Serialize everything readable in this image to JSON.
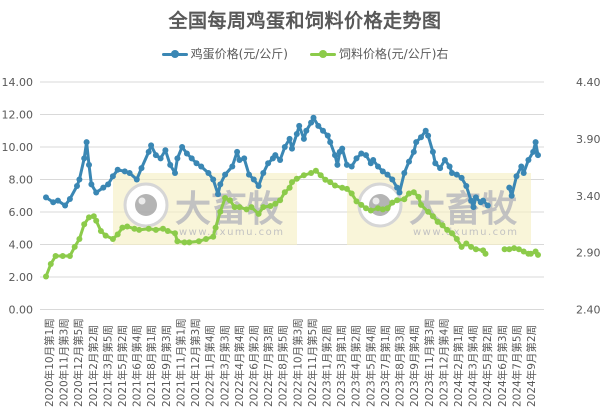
{
  "chart_data": {
    "type": "line",
    "title": "全国每周鸡蛋和饲料价格走势图",
    "legend": [
      {
        "name": "鸡蛋价格(元/公斤)",
        "color": "#3A87B4",
        "axis": "left"
      },
      {
        "name": "饲料价格(元/公斤)右",
        "color": "#8CCB4A",
        "axis": "right"
      }
    ],
    "legend_position": "top",
    "grid": true,
    "left_axis": {
      "min": 0,
      "max": 14,
      "step": 2,
      "ticks": [
        "0.00",
        "2.00",
        "4.00",
        "6.00",
        "8.00",
        "10.00",
        "12.00",
        "14.00"
      ]
    },
    "right_axis": {
      "min": 2.4,
      "max": 4.4,
      "step": 0.5,
      "ticks": [
        "2.40",
        "2.90",
        "3.40",
        "3.90",
        "4.40"
      ]
    },
    "total_weeks": 206,
    "categories": [
      "2020年10月第1周",
      "2020年11月第3周",
      "2020年12月第5周",
      "2021年2月第2周",
      "2021年3月第5周",
      "2021年5月第2周",
      "2021年6月第4周",
      "2021年8月第1周",
      "2021年9月第3周",
      "2021年11月第1周",
      "2021年12月第3周",
      "2022年1月第4周",
      "2022年3月第3周",
      "2022年4月第4周",
      "2022年6月第2周",
      "2022年7月第3周",
      "2022年8月第5周",
      "2022年10月第3周",
      "2022年11月第5周",
      "2023年1月第2周",
      "2023年3月第1周",
      "2023年4月第2周",
      "2023年5月第4周",
      "2023年7月第1周",
      "2023年8月第3周",
      "2023年9月第4周",
      "2023年11月第3周",
      "2023年12月第4周",
      "2024年2月第1周",
      "2024年3月第4周",
      "2024年5月第2周",
      "2024年6月第3周",
      "2024年7月第5周",
      "2024年9月第2周"
    ],
    "series": [
      {
        "name": "鸡蛋价格(元/公斤)",
        "axis": "left",
        "points": [
          [
            0,
            6.9
          ],
          [
            3,
            6.6
          ],
          [
            5,
            6.7
          ],
          [
            8,
            6.4
          ],
          [
            10,
            6.8
          ],
          [
            13,
            7.6
          ],
          [
            14,
            8.0
          ],
          [
            16,
            9.3
          ],
          [
            17,
            10.3
          ],
          [
            18,
            8.9
          ],
          [
            19,
            7.7
          ],
          [
            21,
            7.2
          ],
          [
            24,
            7.5
          ],
          [
            26,
            7.7
          ],
          [
            28,
            8.2
          ],
          [
            30,
            8.6
          ],
          [
            33,
            8.5
          ],
          [
            35,
            8.4
          ],
          [
            38,
            8.0
          ],
          [
            40,
            8.7
          ],
          [
            43,
            9.7
          ],
          [
            44,
            10.1
          ],
          [
            46,
            9.5
          ],
          [
            48,
            9.3
          ],
          [
            50,
            9.8
          ],
          [
            52,
            8.9
          ],
          [
            54,
            8.4
          ],
          [
            55,
            9.3
          ],
          [
            57,
            10.0
          ],
          [
            59,
            9.6
          ],
          [
            61,
            9.3
          ],
          [
            63,
            9.0
          ],
          [
            65,
            8.8
          ],
          [
            68,
            8.4
          ],
          [
            70,
            8.0
          ],
          [
            72,
            7.1
          ],
          [
            73,
            7.7
          ],
          [
            75,
            8.3
          ],
          [
            78,
            8.8
          ],
          [
            80,
            9.7
          ],
          [
            81,
            9.2
          ],
          [
            83,
            9.3
          ],
          [
            85,
            8.3
          ],
          [
            87,
            8.0
          ],
          [
            89,
            7.6
          ],
          [
            91,
            8.4
          ],
          [
            93,
            9.0
          ],
          [
            95,
            9.3
          ],
          [
            96,
            9.5
          ],
          [
            98,
            9.2
          ],
          [
            100,
            10.0
          ],
          [
            102,
            10.5
          ],
          [
            103,
            9.9
          ],
          [
            105,
            10.8
          ],
          [
            106,
            11.3
          ],
          [
            108,
            10.5
          ],
          [
            109,
            11.0
          ],
          [
            111,
            11.5
          ],
          [
            112,
            11.8
          ],
          [
            114,
            11.3
          ],
          [
            116,
            11.0
          ],
          [
            118,
            10.7
          ],
          [
            119,
            10.3
          ],
          [
            121,
            9.5
          ],
          [
            122,
            8.9
          ],
          [
            123,
            9.7
          ],
          [
            124,
            9.9
          ],
          [
            126,
            8.9
          ],
          [
            128,
            8.8
          ],
          [
            130,
            9.3
          ],
          [
            132,
            9.6
          ],
          [
            134,
            9.5
          ],
          [
            136,
            9.0
          ],
          [
            137,
            9.2
          ],
          [
            139,
            8.8
          ],
          [
            141,
            8.5
          ],
          [
            143,
            8.3
          ],
          [
            145,
            8.0
          ],
          [
            147,
            7.5
          ],
          [
            148,
            7.2
          ],
          [
            150,
            8.4
          ],
          [
            152,
            9.1
          ],
          [
            154,
            9.7
          ],
          [
            155,
            10.3
          ],
          [
            157,
            10.6
          ],
          [
            159,
            11.0
          ],
          [
            160,
            10.7
          ],
          [
            162,
            9.7
          ],
          [
            163,
            9.0
          ],
          [
            165,
            8.7
          ],
          [
            167,
            9.2
          ],
          [
            169,
            8.8
          ],
          [
            170,
            8.4
          ],
          [
            172,
            8.3
          ],
          [
            174,
            8.1
          ],
          [
            176,
            7.6
          ],
          [
            178,
            6.7
          ],
          [
            179,
            6.3
          ],
          [
            180,
            6.9
          ],
          [
            182,
            6.6
          ],
          [
            183,
            6.7
          ],
          [
            185,
            6.4
          ],
          [
            194,
            7.5
          ],
          [
            195,
            7.0
          ],
          [
            197,
            8.2
          ],
          [
            199,
            8.8
          ],
          [
            200,
            8.4
          ],
          [
            202,
            9.2
          ],
          [
            204,
            9.7
          ],
          [
            205,
            10.3
          ],
          [
            206,
            9.5
          ]
        ],
        "gaps_after_week": [
          185
        ]
      },
      {
        "name": "饲料价格(元/公斤)右",
        "axis": "right",
        "points": [
          [
            0,
            2.69
          ],
          [
            2,
            2.8
          ],
          [
            4,
            2.87
          ],
          [
            7,
            2.87
          ],
          [
            10,
            2.87
          ],
          [
            12,
            2.95
          ],
          [
            14,
            3.02
          ],
          [
            16,
            3.15
          ],
          [
            18,
            3.21
          ],
          [
            20,
            3.22
          ],
          [
            21,
            3.18
          ],
          [
            23,
            3.09
          ],
          [
            25,
            3.05
          ],
          [
            28,
            3.02
          ],
          [
            30,
            3.06
          ],
          [
            32,
            3.12
          ],
          [
            34,
            3.13
          ],
          [
            37,
            3.11
          ],
          [
            39,
            3.1
          ],
          [
            43,
            3.11
          ],
          [
            46,
            3.1
          ],
          [
            49,
            3.11
          ],
          [
            51,
            3.09
          ],
          [
            54,
            3.07
          ],
          [
            55,
            3.0
          ],
          [
            58,
            2.99
          ],
          [
            60,
            2.99
          ],
          [
            64,
            3.0
          ],
          [
            67,
            3.02
          ],
          [
            70,
            3.04
          ],
          [
            71,
            3.12
          ],
          [
            73,
            3.26
          ],
          [
            75,
            3.38
          ],
          [
            77,
            3.36
          ],
          [
            79,
            3.3
          ],
          [
            81,
            3.3
          ],
          [
            84,
            3.28
          ],
          [
            86,
            3.3
          ],
          [
            89,
            3.24
          ],
          [
            91,
            3.3
          ],
          [
            94,
            3.31
          ],
          [
            96,
            3.33
          ],
          [
            98,
            3.36
          ],
          [
            100,
            3.43
          ],
          [
            102,
            3.47
          ],
          [
            103,
            3.52
          ],
          [
            105,
            3.55
          ],
          [
            108,
            3.58
          ],
          [
            111,
            3.6
          ],
          [
            113,
            3.62
          ],
          [
            115,
            3.58
          ],
          [
            117,
            3.54
          ],
          [
            119,
            3.52
          ],
          [
            121,
            3.49
          ],
          [
            124,
            3.47
          ],
          [
            126,
            3.46
          ],
          [
            128,
            3.42
          ],
          [
            130,
            3.35
          ],
          [
            132,
            3.32
          ],
          [
            134,
            3.29
          ],
          [
            136,
            3.27
          ],
          [
            139,
            3.29
          ],
          [
            141,
            3.28
          ],
          [
            143,
            3.29
          ],
          [
            145,
            3.34
          ],
          [
            147,
            3.36
          ],
          [
            150,
            3.37
          ],
          [
            152,
            3.42
          ],
          [
            154,
            3.43
          ],
          [
            156,
            3.39
          ],
          [
            157,
            3.32
          ],
          [
            160,
            3.26
          ],
          [
            162,
            3.22
          ],
          [
            164,
            3.17
          ],
          [
            166,
            3.14
          ],
          [
            168,
            3.1
          ],
          [
            170,
            3.07
          ],
          [
            172,
            3.02
          ],
          [
            174,
            2.95
          ],
          [
            176,
            2.98
          ],
          [
            178,
            2.95
          ],
          [
            180,
            2.93
          ],
          [
            183,
            2.92
          ],
          [
            184,
            2.89
          ],
          [
            192,
            2.93
          ],
          [
            194,
            2.93
          ],
          [
            196,
            2.94
          ],
          [
            198,
            2.93
          ],
          [
            200,
            2.91
          ],
          [
            202,
            2.89
          ],
          [
            203,
            2.89
          ],
          [
            205,
            2.91
          ],
          [
            206,
            2.88
          ]
        ],
        "gaps_after_week": [
          184
        ]
      }
    ]
  },
  "watermarks": [
    {
      "brand": "大畜牧",
      "url": "www.dxumu.com"
    },
    {
      "brand": "大畜牧",
      "url": "www.dxumu.com"
    }
  ]
}
